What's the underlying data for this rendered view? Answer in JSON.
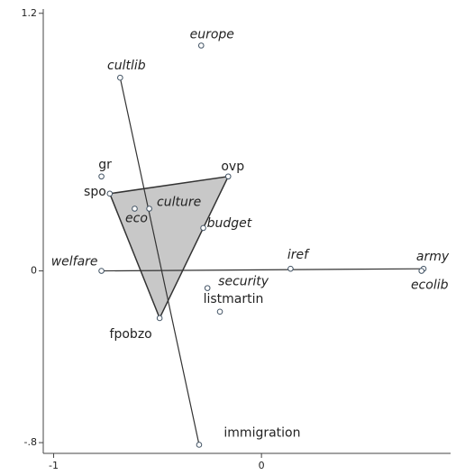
{
  "chart_data": {
    "type": "scatter",
    "points": [
      {
        "label": "europe",
        "x": -0.29,
        "y": 1.05
      },
      {
        "label": "cultlib",
        "x": -0.68,
        "y": 0.9
      },
      {
        "label": "gr",
        "x": -0.77,
        "y": 0.44
      },
      {
        "label": "spo",
        "x": -0.73,
        "y": 0.36
      },
      {
        "label": "eco",
        "x": -0.61,
        "y": 0.29
      },
      {
        "label": "culture",
        "x": -0.54,
        "y": 0.29
      },
      {
        "label": "ovp",
        "x": -0.16,
        "y": 0.44
      },
      {
        "label": "budget",
        "x": -0.28,
        "y": 0.2
      },
      {
        "label": "welfare",
        "x": -0.77,
        "y": 0
      },
      {
        "label": "iref",
        "x": 0.14,
        "y": 0.01
      },
      {
        "label": "army",
        "x": 0.78,
        "y": 0.01
      },
      {
        "label": "ecolib",
        "x": 0.77,
        "y": 0
      },
      {
        "label": "security",
        "x": -0.26,
        "y": -0.08
      },
      {
        "label": "listmartin",
        "x": -0.2,
        "y": -0.19
      },
      {
        "label": "fpobzo",
        "x": -0.49,
        "y": -0.22
      },
      {
        "label": "immigration",
        "x": -0.3,
        "y": -0.81
      }
    ],
    "lines": [
      [
        "cultlib",
        "immigration"
      ],
      [
        "welfare",
        "army"
      ]
    ],
    "triangle": [
      "spo",
      "ovp",
      "fpobzo"
    ],
    "xlim": [
      -1.05,
      0.91
    ],
    "ylim": [
      -0.85,
      1.22
    ],
    "xticks": [
      -1,
      0
    ],
    "yticks": [
      1.2,
      0,
      {
        "value": -0.8,
        "label": "-.8"
      }
    ]
  }
}
